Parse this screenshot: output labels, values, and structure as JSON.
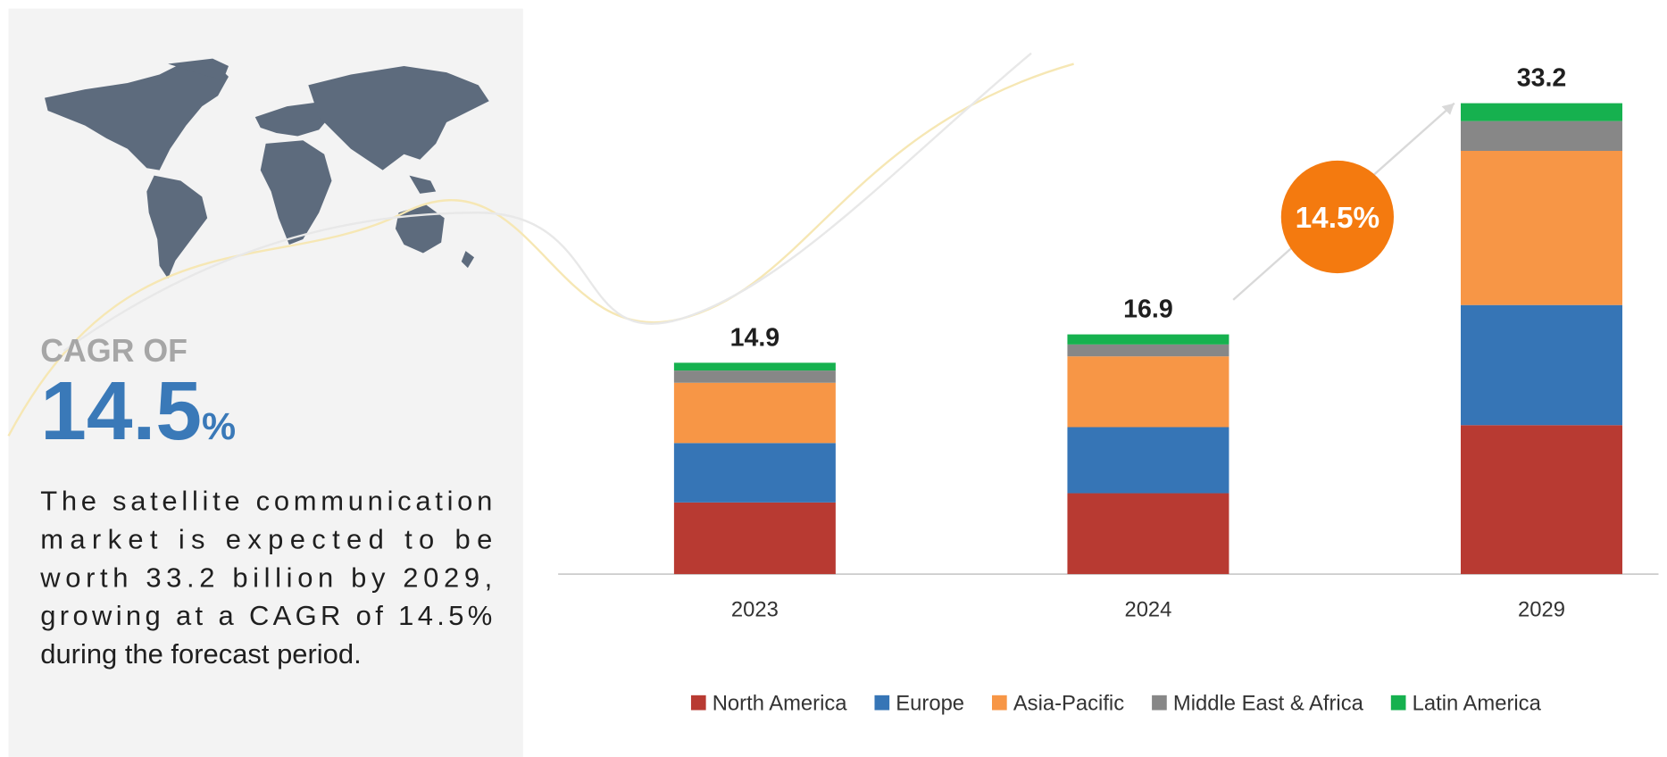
{
  "chart_data": {
    "type": "stacked_bar",
    "categories": [
      "2023",
      "2024",
      "2029"
    ],
    "series": [
      {
        "name": "North America",
        "color": "#b83a32",
        "values": [
          5.05,
          5.7,
          10.5
        ]
      },
      {
        "name": "Europe",
        "color": "#3675b6",
        "values": [
          4.19,
          4.66,
          8.47
        ]
      },
      {
        "name": "Asia-Pacific",
        "color": "#f79646",
        "values": [
          4.25,
          4.99,
          10.87
        ]
      },
      {
        "name": "Middle East & Africa",
        "color": "#878787",
        "values": [
          0.86,
          0.84,
          2.1
        ]
      },
      {
        "name": "Latin America",
        "color": "#16b14f",
        "values": [
          0.55,
          0.71,
          1.26
        ]
      }
    ],
    "totals": [
      14.9,
      16.9,
      33.2
    ],
    "growth_badge": "14.5%",
    "legend": "bottom"
  },
  "panel": {
    "cagr_label": "CAGR OF",
    "cagr_value": "14.5",
    "cagr_unit": "%",
    "description": [
      "The satellite communication",
      "market is expected to be",
      "worth 33.2 billion by 2029,",
      "growing at a CAGR of 14.5%",
      "during the forecast period."
    ]
  }
}
